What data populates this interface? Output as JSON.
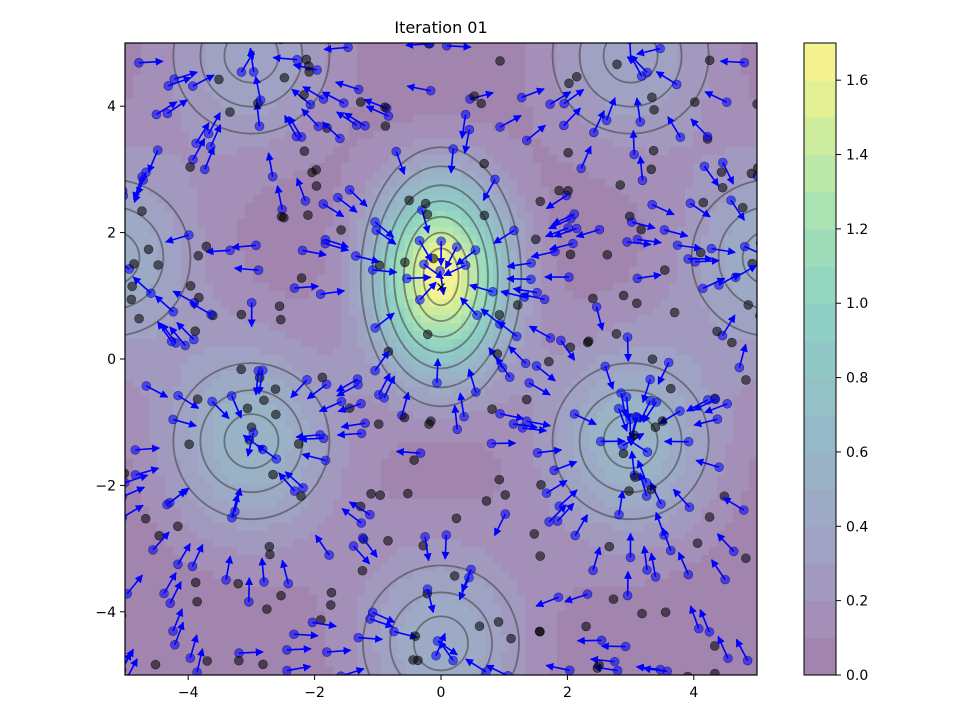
{
  "chart_data": {
    "type": "contour",
    "title": "Iteration 01",
    "xlabel": "",
    "ylabel": "",
    "xlim": [
      -5,
      5
    ],
    "ylim": [
      -5,
      5
    ],
    "x_ticks": [
      -4,
      -2,
      0,
      2,
      4
    ],
    "y_ticks": [
      -4,
      -2,
      0,
      2,
      4
    ],
    "x_tick_labels": [
      "−4",
      "−2",
      "0",
      "2",
      "4"
    ],
    "y_tick_labels": [
      "−4",
      "−2",
      "0",
      "2",
      "4"
    ],
    "density_peaks": [
      {
        "x": 0.0,
        "y": 1.3,
        "height": 1.7
      },
      {
        "x": -3.0,
        "y": -1.3,
        "height": 0.6
      },
      {
        "x": 3.0,
        "y": -1.3,
        "height": 0.6
      },
      {
        "x": 0.0,
        "y": -4.5,
        "height": 0.5
      },
      {
        "x": -3.0,
        "y": 4.8,
        "height": 0.4
      },
      {
        "x": 3.0,
        "y": 4.8,
        "height": 0.4
      },
      {
        "x": 5.2,
        "y": 1.6,
        "height": 0.5
      },
      {
        "x": -5.2,
        "y": 1.6,
        "height": 0.5
      }
    ],
    "contour_levels": [
      0.2,
      0.4,
      0.6,
      0.8,
      1.0,
      1.2,
      1.4,
      1.6
    ],
    "inline_contour_labels": [
      "0",
      "1",
      "1",
      "0",
      "1",
      "1"
    ],
    "marker": {
      "x": 0.0,
      "y": 1.15,
      "symbol": "×"
    },
    "particles": {
      "count": 500,
      "distribution": "uniform in [-5,5]x[-5,5], black dots; blue dots with arrows pointing toward the nearest density peak",
      "black_color": "#000000",
      "blue_color": "#0000ff"
    },
    "colorbar": {
      "min": 0.0,
      "max": 1.7,
      "ticks": [
        0.0,
        0.2,
        0.4,
        0.6,
        0.8,
        1.0,
        1.2,
        1.4,
        1.6
      ],
      "tick_labels": [
        "0.0",
        "0.2",
        "0.4",
        "0.6",
        "0.8",
        "1.0",
        "1.2",
        "1.4",
        "1.6"
      ],
      "colormap": [
        "#440154",
        "#482475",
        "#414487",
        "#355f8d",
        "#2a788e",
        "#21918c",
        "#22a884",
        "#44bf70",
        "#7ad151",
        "#bddf26",
        "#fde725"
      ],
      "alpha": 0.5
    },
    "grid": false,
    "legend": "none"
  }
}
